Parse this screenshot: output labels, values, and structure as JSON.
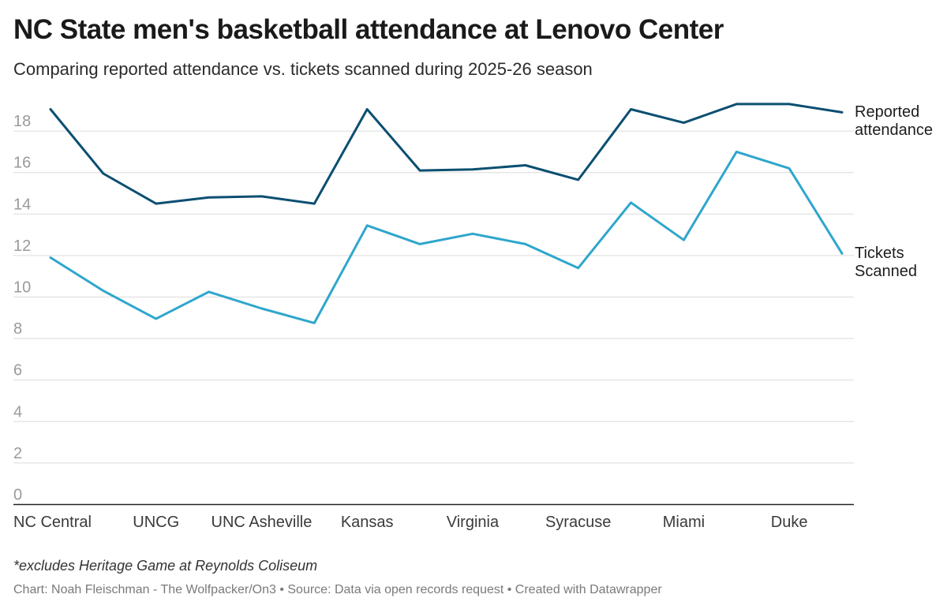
{
  "title": "NC State men's basketball attendance at Lenovo Center",
  "subtitle": "Comparing reported attendance vs. tickets scanned during 2025-26 season",
  "note": "*excludes Heritage Game at Reynolds Coliseum",
  "source": "Chart: Noah Fleischman - The Wolfpacker/On3 • Source: Data via open records request • Created with Datawrapper",
  "colors": {
    "reported": "#0b4f71",
    "scanned": "#2fa6cc",
    "grid": "#dcdcdc",
    "axis": "#222222",
    "tick": "#9a9a9a"
  },
  "chart_data": {
    "type": "line",
    "y_ticks": [
      0,
      2,
      4,
      6,
      8,
      10,
      12,
      14,
      16,
      18
    ],
    "ylim": [
      0,
      19.5
    ],
    "grid": true,
    "x_tick_labels": [
      "NC Central",
      "UNCG",
      "UNC Asheville",
      "Kansas",
      "Virginia",
      "Syracuse",
      "Miami",
      "Duke"
    ],
    "x_tick_positions": [
      0,
      2,
      4,
      6,
      8,
      10,
      12,
      14
    ],
    "num_games": 16,
    "series": [
      {
        "name": "Reported attendance",
        "label_lines": [
          "Reported",
          "attendance"
        ],
        "color_key": "reported",
        "values": [
          19.05,
          15.95,
          14.5,
          14.8,
          14.85,
          14.5,
          19.05,
          16.1,
          16.15,
          16.35,
          15.65,
          19.05,
          18.4,
          19.3,
          19.3,
          18.9
        ]
      },
      {
        "name": "Tickets Scanned",
        "label_lines": [
          "Tickets",
          "Scanned"
        ],
        "color_key": "scanned",
        "values": [
          11.9,
          10.3,
          8.95,
          10.25,
          9.45,
          8.75,
          13.45,
          12.55,
          13.05,
          12.55,
          11.4,
          14.55,
          12.75,
          17.0,
          16.2,
          12.1
        ]
      }
    ]
  }
}
